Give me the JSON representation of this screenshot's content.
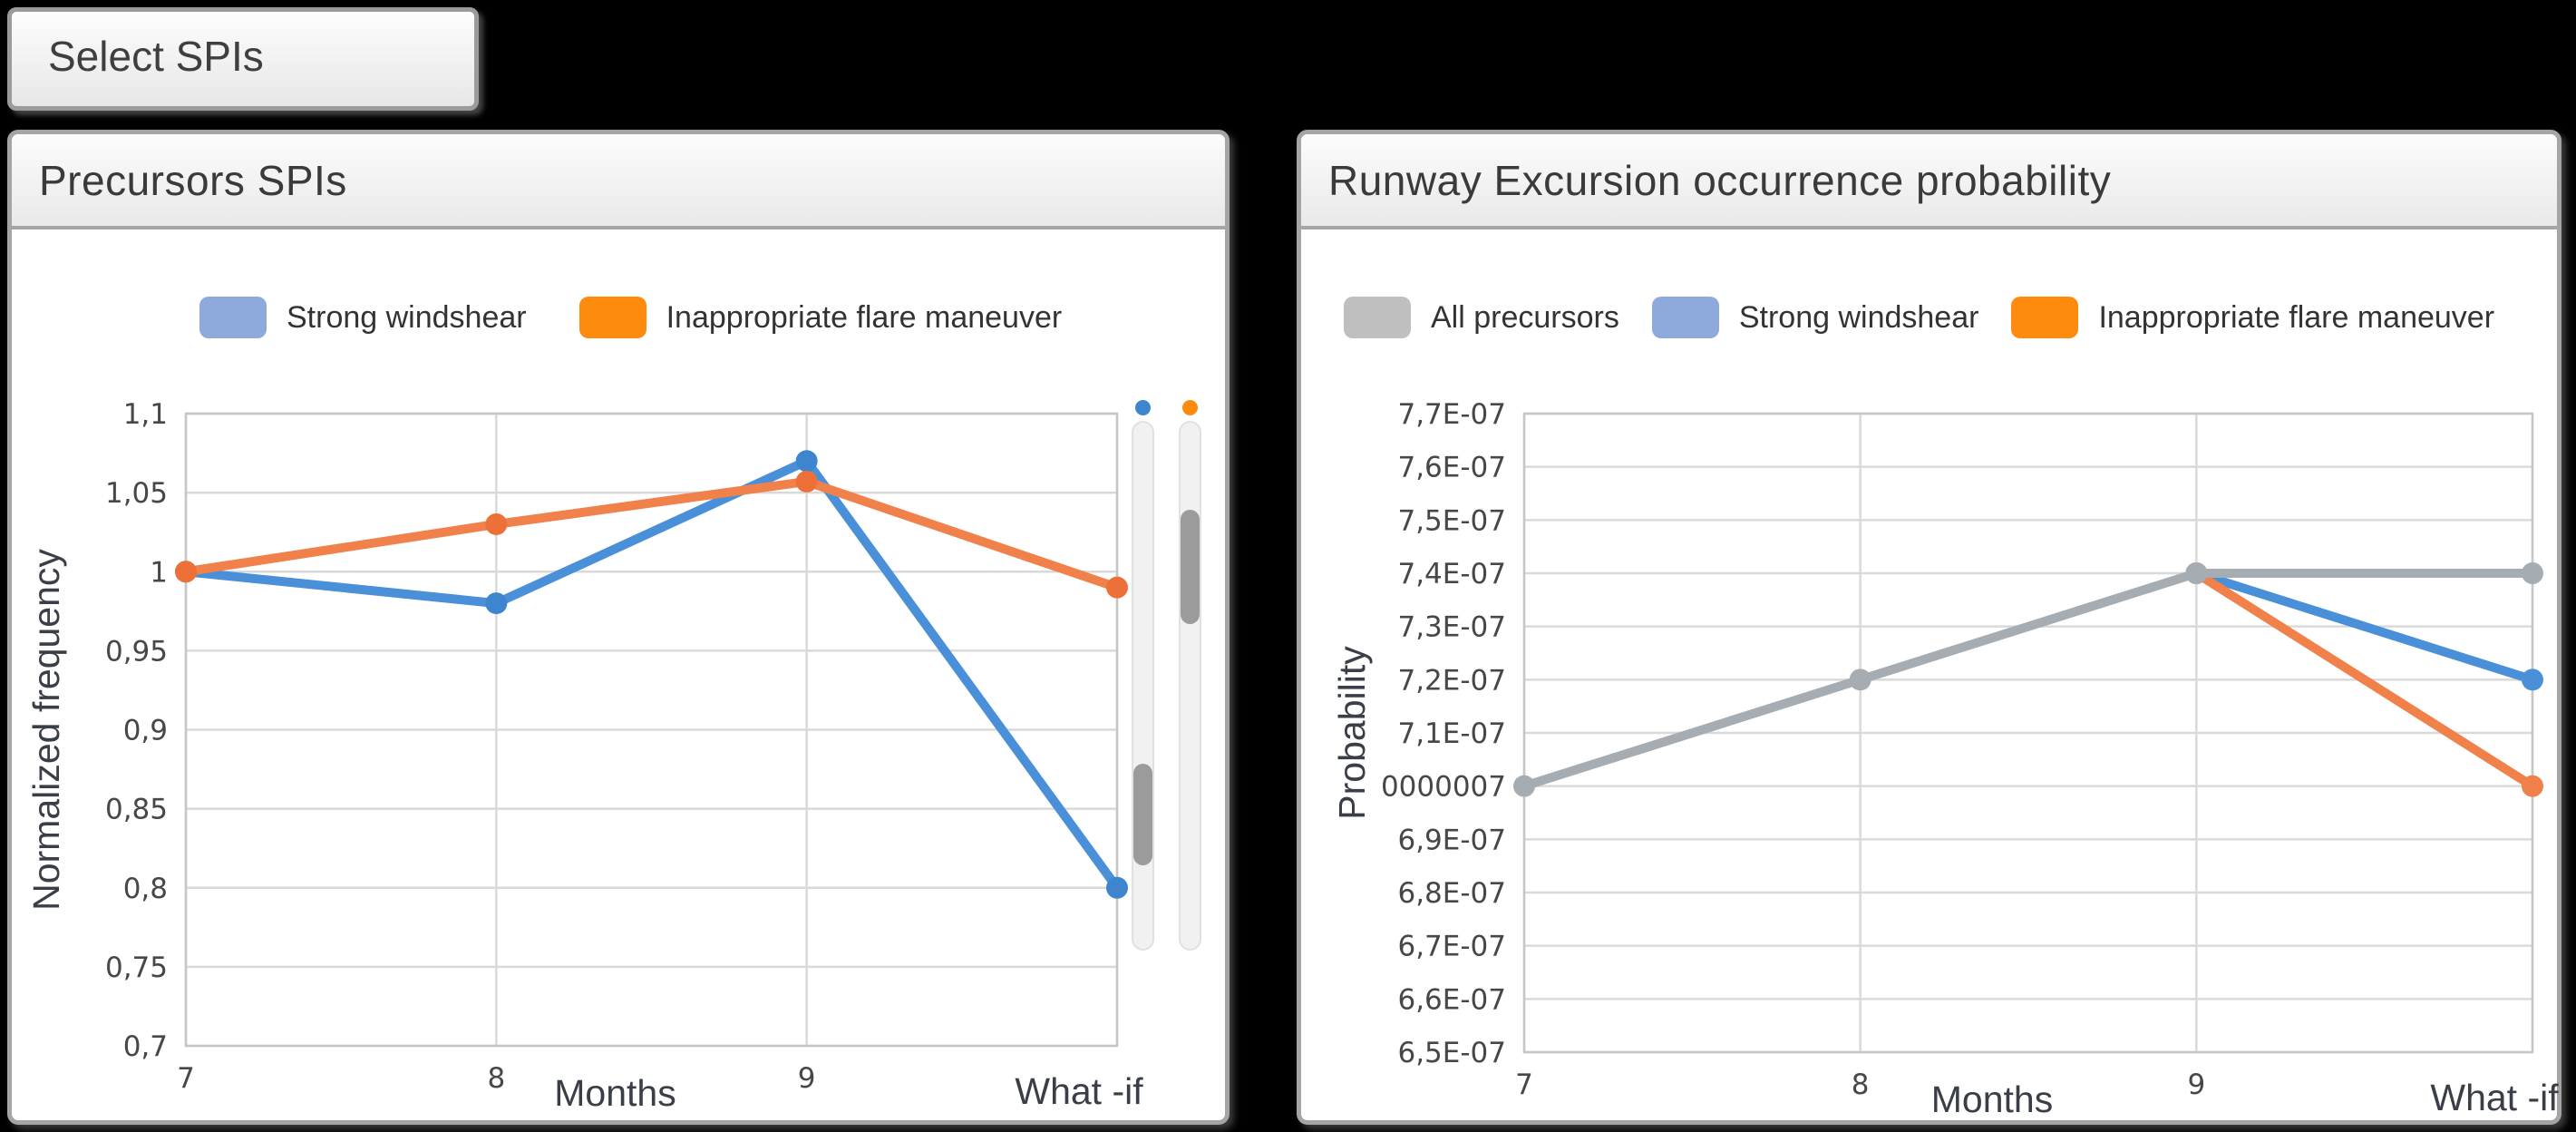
{
  "select_button": {
    "label": "Select SPIs"
  },
  "chart_data": [
    {
      "type": "line",
      "title": "Precursors SPIs",
      "xlabel": "Months",
      "ylabel": "Normalized frequency",
      "categories": [
        "7",
        "8",
        "9",
        "What -if"
      ],
      "y_ticks": [
        "1,1",
        "1,05",
        "1",
        "0,95",
        "0,9",
        "0,85",
        "0,8",
        "0,75",
        "0,7"
      ],
      "y_max": 1.1,
      "y_min": 0.7,
      "grid": true,
      "legend_position": "top",
      "legend": [
        {
          "label": "Strong windshear",
          "color": "#8EA9DB"
        },
        {
          "label": "Inappropriate flare maneuver",
          "color": "#FF8B0E"
        }
      ],
      "series": [
        {
          "key": "strong-windshear",
          "name": "Strong windshear",
          "color": "#4A90D9",
          "marker_color": "#3D85CC",
          "values": [
            1,
            0.98,
            1.07,
            0.8
          ]
        },
        {
          "key": "inappropriate-flare-maneuver",
          "name": "Inappropriate flare maneuver",
          "color": "#F0814B",
          "marker_color": "#ED7038",
          "values": [
            1,
            1.03,
            1.057,
            0.99
          ]
        }
      ],
      "whatif_sliders": [
        {
          "key": "strong-windshear",
          "dot_color": "#3D85CC",
          "thumb_top_pct": 64.9,
          "thumb_height_pct": 19.3
        },
        {
          "key": "inappropriate-flare-maneuver",
          "dot_color": "#FF8B0E",
          "thumb_top_pct": 16.6,
          "thumb_height_pct": 21.7
        }
      ]
    },
    {
      "type": "line",
      "title": "Runway Excursion occurrence probability",
      "xlabel": "Months",
      "ylabel": "Probability",
      "categories": [
        "7",
        "8",
        "9",
        "What -if"
      ],
      "y_ticks": [
        "7,7E-07",
        "7,6E-07",
        "7,5E-07",
        "7,4E-07",
        "7,3E-07",
        "7,2E-07",
        "7,1E-07",
        "0000007",
        "6,9E-07",
        "6,8E-07",
        "6,7E-07",
        "6,6E-07",
        "6,5E-07"
      ],
      "y_max": 7.7e-07,
      "y_min": 6.5e-07,
      "grid": true,
      "legend_position": "top",
      "legend": [
        {
          "label": "All precursors",
          "color": "#BFBFBF"
        },
        {
          "label": "Strong windshear",
          "color": "#8EA9DB"
        },
        {
          "label": "Inappropriate flare maneuver",
          "color": "#FF8B0E"
        }
      ],
      "series": [
        {
          "key": "strong-windshear",
          "name": "Strong windshear",
          "color": "#4A90D9",
          "values": [
            null,
            null,
            7.4e-07,
            7.2e-07
          ]
        },
        {
          "key": "inappropriate-flare-maneuver",
          "name": "Inappropriate flare maneuver",
          "color": "#F0814B",
          "values": [
            null,
            null,
            7.4e-07,
            7e-07
          ]
        },
        {
          "key": "all-precursors",
          "name": "All precursors",
          "color": "#A6ADB2",
          "values": [
            7e-07,
            7.2e-07,
            7.4e-07,
            7.4e-07
          ]
        }
      ]
    }
  ]
}
